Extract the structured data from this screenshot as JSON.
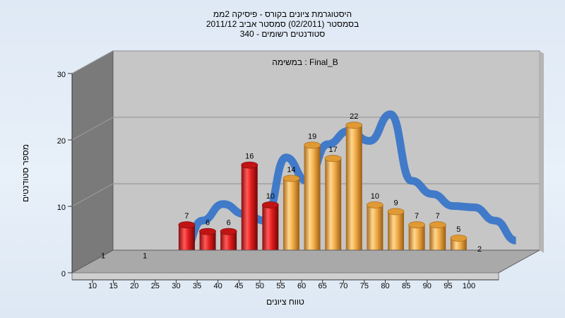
{
  "chart_data": {
    "type": "bar",
    "title_lines": [
      "היסטוגרמת ציונים בקורס - פיסיקה 2ממ",
      "בסמסטר  (02/2011)  סמסטר אביב 2011/12",
      "סטודנטים רשומים - 340"
    ],
    "subtitle": "במשימה : Final_B",
    "ylabel": "מספר סטודנטים",
    "xlabel": "טווח ציונים",
    "ylim": [
      0,
      30
    ],
    "yticks": [
      0,
      10,
      20,
      30
    ],
    "grid": true,
    "legend": "none",
    "categories": [
      "10",
      "15",
      "20",
      "25",
      "30",
      "35",
      "40",
      "45",
      "50",
      "55",
      "60",
      "65",
      "70",
      "75",
      "80",
      "85",
      "90",
      "95",
      "100"
    ],
    "values": [
      1,
      0,
      1,
      0,
      7,
      6,
      6,
      16,
      10,
      14,
      19,
      17,
      22,
      10,
      9,
      7,
      7,
      5,
      2
    ],
    "colors": {
      "fail": "#e02020",
      "pass": "#f2b04a",
      "trend": "#3a76c8",
      "trend_grey": "#6d6d6d",
      "wall": "#c6c6c6",
      "side": "#7a7a7a"
    }
  }
}
